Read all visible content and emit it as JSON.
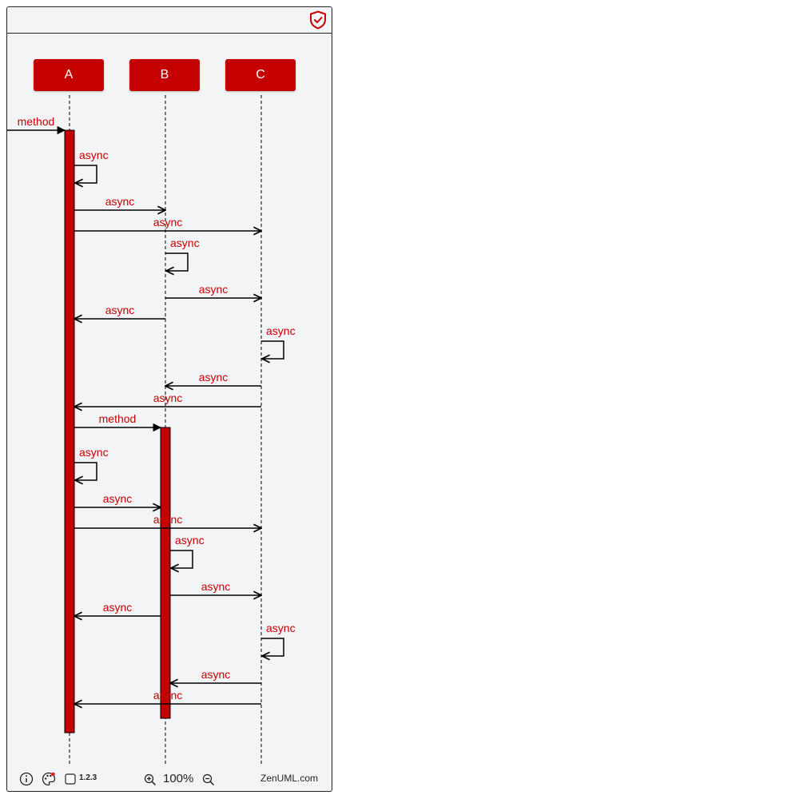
{
  "participants": [
    "A",
    "B",
    "C"
  ],
  "messages": [
    {
      "from": "start",
      "to": "A",
      "label": "method",
      "kind": "sync"
    },
    {
      "from": "A",
      "to": "A",
      "label": "async",
      "kind": "self"
    },
    {
      "from": "A",
      "to": "B",
      "label": "async",
      "kind": "async"
    },
    {
      "from": "A",
      "to": "C",
      "label": "async",
      "kind": "async"
    },
    {
      "from": "B",
      "to": "B",
      "label": "async",
      "kind": "self"
    },
    {
      "from": "B",
      "to": "C",
      "label": "async",
      "kind": "async"
    },
    {
      "from": "B",
      "to": "A",
      "label": "async",
      "kind": "async"
    },
    {
      "from": "C",
      "to": "C",
      "label": "async",
      "kind": "self"
    },
    {
      "from": "C",
      "to": "B",
      "label": "async",
      "kind": "async"
    },
    {
      "from": "C",
      "to": "A",
      "label": "async",
      "kind": "async"
    },
    {
      "from": "A",
      "to": "B",
      "label": "method",
      "kind": "sync"
    },
    {
      "from": "A",
      "to": "A",
      "label": "async",
      "kind": "self"
    },
    {
      "from": "A",
      "to": "B",
      "label": "async",
      "kind": "async"
    },
    {
      "from": "A",
      "to": "C",
      "label": "async",
      "kind": "async"
    },
    {
      "from": "B",
      "to": "B",
      "label": "async",
      "kind": "self"
    },
    {
      "from": "B",
      "to": "C",
      "label": "async",
      "kind": "async"
    },
    {
      "from": "B",
      "to": "A",
      "label": "async",
      "kind": "async"
    },
    {
      "from": "C",
      "to": "C",
      "label": "async",
      "kind": "self"
    },
    {
      "from": "C",
      "to": "B",
      "label": "async",
      "kind": "async"
    },
    {
      "from": "C",
      "to": "A",
      "label": "async",
      "kind": "async"
    }
  ],
  "footer": {
    "info_icon": "info-icon",
    "theme_icon": "palette-icon",
    "numbering_label": "1.2.3",
    "zoom_in_icon": "zoom-in-icon",
    "zoom_level": "100%",
    "zoom_out_icon": "zoom-out-icon",
    "brand": "ZenUML.com"
  },
  "colors": {
    "accent": "#c50000",
    "background": "#f2f4f6",
    "line": "#000000"
  }
}
